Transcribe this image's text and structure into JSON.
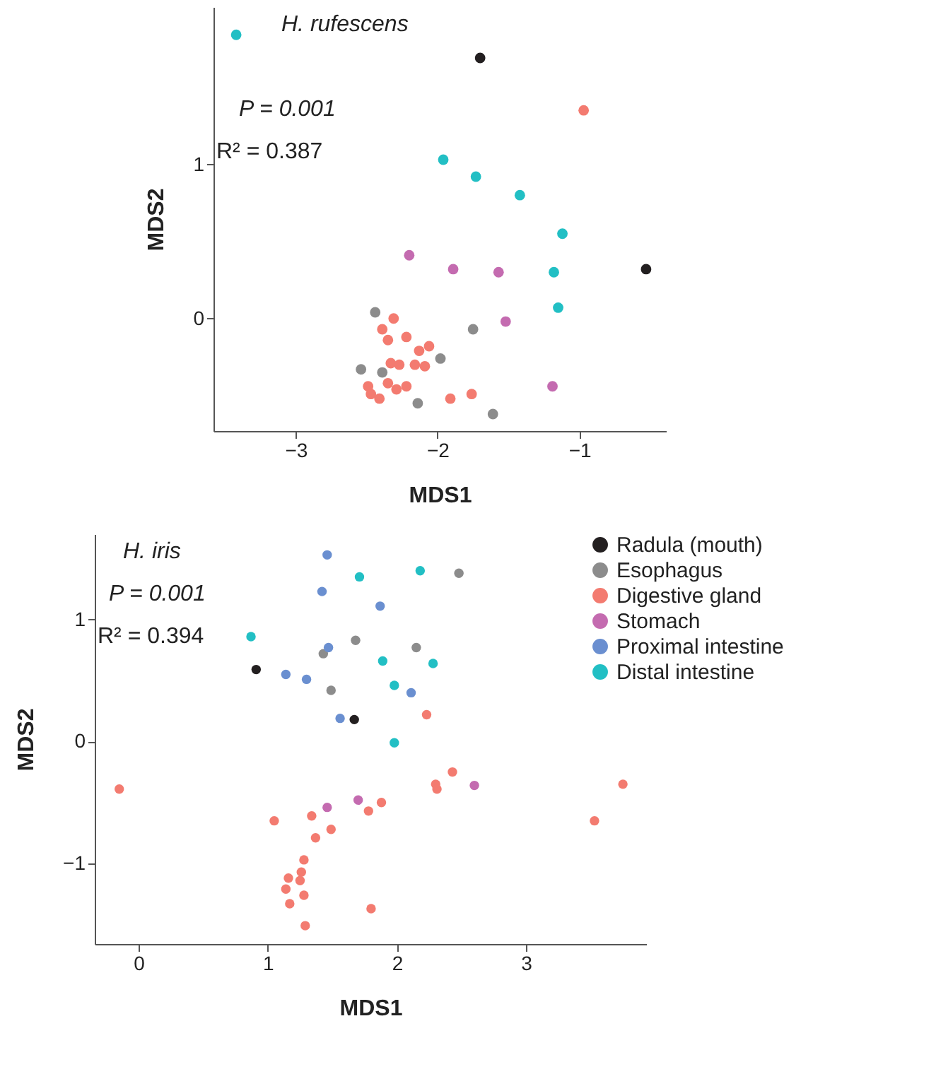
{
  "chart_data": [
    {
      "type": "scatter",
      "xlabel": "MDS1",
      "ylabel": "MDS2",
      "xlim": [
        -3.58,
        -0.39
      ],
      "ylim": [
        -0.73,
        2.02
      ],
      "xticks": [
        -3,
        -2,
        -1
      ],
      "yticks": [
        0,
        1
      ],
      "grid": false,
      "legend": false,
      "marker": "circle",
      "annotations": [
        "H. rufescens",
        "P = 0.001",
        "R² = 0.387"
      ],
      "series": [
        {
          "color": "#231f20",
          "x": [
            -1.7,
            -0.53
          ],
          "values": [
            1.69,
            0.32
          ]
        },
        {
          "color": "#8c8c8c",
          "x": [
            -2.44,
            -1.75,
            -1.98,
            -2.54,
            -2.39,
            -2.14,
            -1.61
          ],
          "values": [
            0.04,
            -0.07,
            -0.26,
            -0.33,
            -0.35,
            -0.55,
            -0.62
          ]
        },
        {
          "color": "#f37b70",
          "x": [
            -0.97,
            -2.31,
            -2.39,
            -2.35,
            -2.22,
            -2.06,
            -2.13,
            -2.33,
            -2.27,
            -2.16,
            -2.09,
            -2.35,
            -2.49,
            -2.47,
            -2.41,
            -2.29,
            -2.22,
            -1.91,
            -1.76
          ],
          "values": [
            1.35,
            0.0,
            -0.07,
            -0.14,
            -0.12,
            -0.18,
            -0.21,
            -0.29,
            -0.3,
            -0.3,
            -0.31,
            -0.42,
            -0.44,
            -0.49,
            -0.52,
            -0.46,
            -0.44,
            -0.52,
            -0.49
          ]
        },
        {
          "color": "#c46bb0",
          "x": [
            -2.2,
            -1.89,
            -1.57,
            -1.52,
            -1.19
          ],
          "values": [
            0.41,
            0.32,
            0.3,
            -0.02,
            -0.44
          ]
        },
        {
          "color": "#22bfc4",
          "x": [
            -3.42,
            -1.96,
            -1.73,
            -1.42,
            -1.12,
            -1.18,
            -1.15
          ],
          "values": [
            1.84,
            1.03,
            0.92,
            0.8,
            0.55,
            0.3,
            0.07
          ]
        }
      ]
    },
    {
      "type": "scatter",
      "xlabel": "MDS1",
      "ylabel": "MDS2",
      "xlim": [
        -0.34,
        3.93
      ],
      "ylim": [
        -1.66,
        1.7
      ],
      "xticks": [
        0,
        1,
        2,
        3
      ],
      "yticks": [
        -1,
        0,
        1
      ],
      "grid": false,
      "legend": "right",
      "marker": "circle",
      "annotations": [
        "H. iris",
        "P = 0.001",
        "R² = 0.394"
      ],
      "series": [
        {
          "name": "Radula (mouth)",
          "color": "#231f20",
          "x": [
            0.91,
            1.67
          ],
          "values": [
            0.59,
            0.18
          ]
        },
        {
          "name": "Esophagus",
          "color": "#8c8c8c",
          "x": [
            2.48,
            1.68,
            1.43,
            2.15,
            1.49
          ],
          "values": [
            1.38,
            0.83,
            0.72,
            0.77,
            0.42
          ]
        },
        {
          "name": "Digestive gland",
          "color": "#f37b70",
          "x": [
            2.23,
            -0.15,
            2.43,
            2.3,
            2.31,
            3.75,
            3.53,
            1.05,
            1.34,
            1.88,
            1.78,
            1.49,
            1.37,
            1.28,
            1.26,
            1.25,
            1.16,
            1.14,
            1.28,
            1.17,
            1.8,
            1.29
          ],
          "values": [
            0.22,
            -0.39,
            -0.25,
            -0.35,
            -0.39,
            -0.35,
            -0.65,
            -0.65,
            -0.61,
            -0.5,
            -0.57,
            -0.72,
            -0.79,
            -0.97,
            -1.07,
            -1.14,
            -1.12,
            -1.21,
            -1.26,
            -1.33,
            -1.37,
            -1.51
          ]
        },
        {
          "name": "Stomach",
          "color": "#c46bb0",
          "x": [
            1.46,
            1.7,
            2.6
          ],
          "values": [
            -0.54,
            -0.48,
            -0.36
          ]
        },
        {
          "name": "Proximal intestine",
          "color": "#6a8fd0",
          "x": [
            1.46,
            1.42,
            1.87,
            1.47,
            1.14,
            1.3,
            2.11,
            1.56
          ],
          "values": [
            1.53,
            1.23,
            1.11,
            0.77,
            0.55,
            0.51,
            0.4,
            0.19
          ]
        },
        {
          "name": "Distal intestine",
          "color": "#22bfc4",
          "x": [
            1.71,
            2.18,
            0.87,
            1.89,
            2.28,
            1.98,
            1.98
          ],
          "values": [
            1.35,
            1.4,
            0.86,
            0.66,
            0.64,
            0.46,
            -0.01
          ]
        }
      ]
    }
  ]
}
